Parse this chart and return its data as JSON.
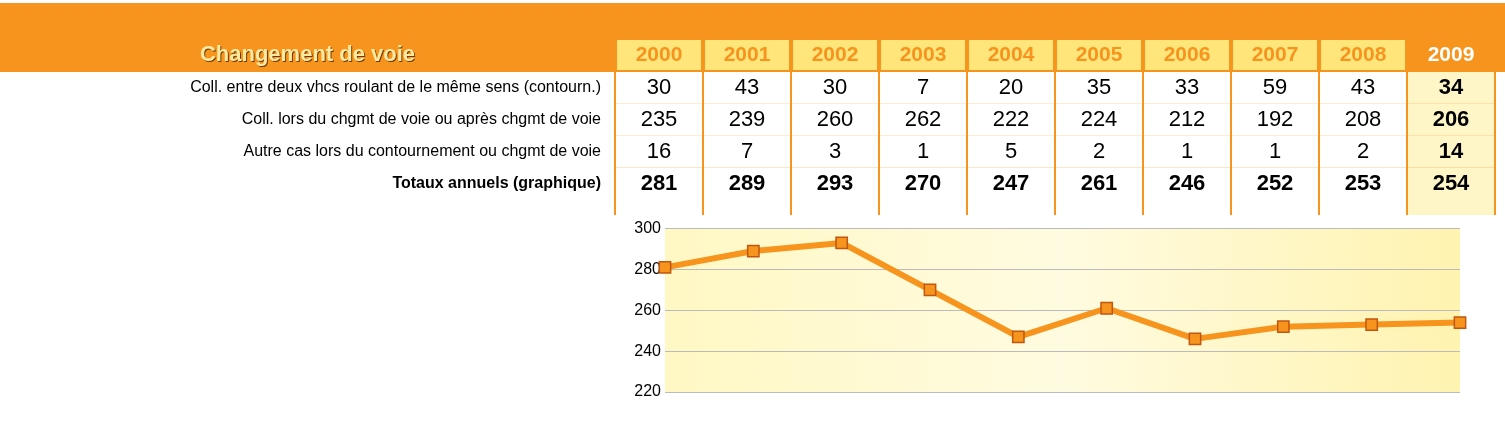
{
  "chart_data": [
    {
      "type": "heatmap",
      "title": "Changement de voie",
      "categories": [
        "2000",
        "2001",
        "2002",
        "2003",
        "2004",
        "2005",
        "2006",
        "2007",
        "2008",
        "2009"
      ],
      "y_categories": [
        "Coll. entre deux vhcs roulant de le même sens (contourn.)",
        "Coll. lors du chgmt de voie ou après chgmt de voie",
        "Autre cas lors du contournement ou chgmt de voie",
        "Totaux annuels (graphique)"
      ],
      "cells": [
        [
          30,
          43,
          30,
          7,
          20,
          35,
          33,
          59,
          43,
          34
        ],
        [
          235,
          239,
          260,
          262,
          222,
          224,
          212,
          192,
          208,
          206
        ],
        [
          16,
          7,
          3,
          1,
          5,
          2,
          1,
          1,
          2,
          14
        ],
        [
          281,
          289,
          293,
          270,
          247,
          261,
          246,
          252,
          253,
          254
        ]
      ],
      "data_labels": true
    },
    {
      "type": "line",
      "categories": [
        "2000",
        "2001",
        "2002",
        "2003",
        "2004",
        "2005",
        "2006",
        "2007",
        "2008",
        "2009"
      ],
      "values": [
        281,
        289,
        293,
        270,
        247,
        261,
        246,
        252,
        253,
        254
      ],
      "color": "#f7941d",
      "ylim": [
        220,
        300
      ],
      "yticks": [
        220,
        240,
        260,
        280,
        300
      ],
      "grid": "y",
      "marker": "square",
      "tick_labels": "y",
      "legend": false
    }
  ]
}
